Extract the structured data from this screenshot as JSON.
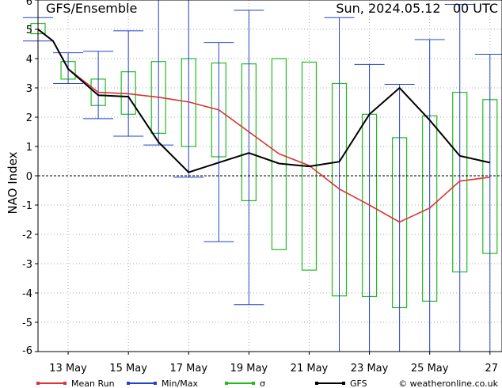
{
  "chart_data": {
    "type": "line",
    "title": "GFS/Ensemble",
    "date_label": "Sun, 2024.05.12   00 UTC",
    "ylabel": "NAO Index",
    "ylim": [
      -6,
      6
    ],
    "xlim": [
      12,
      27.4
    ],
    "yticks": [
      -6,
      -5,
      -4,
      -3,
      -2,
      -1,
      0,
      1,
      2,
      3,
      4,
      5,
      6
    ],
    "xticks": [
      {
        "x": 13,
        "label": "13 May"
      },
      {
        "x": 15,
        "label": "15 May"
      },
      {
        "x": 17,
        "label": "17 May"
      },
      {
        "x": 19,
        "label": "19 May"
      },
      {
        "x": 21,
        "label": "21 May"
      },
      {
        "x": 23,
        "label": "23 May"
      },
      {
        "x": 25,
        "label": "25 May"
      },
      {
        "x": 27,
        "label": "27"
      }
    ],
    "grid": true,
    "legend_position": "bottom",
    "colors": {
      "mean": "#dd3333",
      "minmax": "#2244cc",
      "sigma": "#22bb22",
      "gfs": "#000000",
      "grid": "#aaaaaa"
    },
    "legend": [
      {
        "key": "mean",
        "label": "Mean Run"
      },
      {
        "key": "minmax",
        "label": "Min/Max"
      },
      {
        "key": "sigma",
        "label": "σ"
      },
      {
        "key": "gfs",
        "label": "GFS"
      }
    ],
    "copyright": "© weatheronline.co.uk",
    "days": [
      12,
      12.5,
      13,
      14,
      15,
      16,
      17,
      18,
      19,
      20,
      21,
      22,
      23,
      24,
      25,
      26,
      27
    ],
    "mean_run": [
      5.0,
      4.6,
      3.65,
      2.85,
      2.8,
      2.68,
      2.52,
      2.25,
      1.5,
      0.75,
      0.35,
      -0.45,
      -1.0,
      -1.58,
      -1.1,
      -0.18,
      -0.05
    ],
    "gfs": [
      5.0,
      4.6,
      3.65,
      2.75,
      2.7,
      1.15,
      0.12,
      0.45,
      0.78,
      0.42,
      0.32,
      0.48,
      2.1,
      3.0,
      1.9,
      0.68,
      0.45
    ],
    "minmax": [
      {
        "x": 12,
        "min": 4.6,
        "max": 5.4
      },
      {
        "x": 13,
        "min": 3.15,
        "max": 4.2
      },
      {
        "x": 14,
        "min": 1.95,
        "max": 4.25
      },
      {
        "x": 15,
        "min": 1.35,
        "max": 4.95
      },
      {
        "x": 16,
        "min": 1.05,
        "max": 6.0
      },
      {
        "x": 17,
        "min": -0.05,
        "max": 6.0
      },
      {
        "x": 18,
        "min": -2.25,
        "max": 4.55
      },
      {
        "x": 19,
        "min": -4.4,
        "max": 5.65
      },
      {
        "x": 22,
        "min": -6.0,
        "max": 5.4
      },
      {
        "x": 23,
        "min": -6.0,
        "max": 3.8
      },
      {
        "x": 24,
        "min": -6.0,
        "max": 3.12
      },
      {
        "x": 25,
        "min": -6.0,
        "max": 4.65
      },
      {
        "x": 26,
        "min": -6.0,
        "max": 5.85
      },
      {
        "x": 27,
        "min": -6.0,
        "max": 4.15
      }
    ],
    "sigma": [
      {
        "x": 12,
        "low": 4.85,
        "high": 5.2
      },
      {
        "x": 13,
        "low": 3.3,
        "high": 3.9
      },
      {
        "x": 14,
        "low": 2.4,
        "high": 3.3
      },
      {
        "x": 15,
        "low": 2.1,
        "high": 3.55
      },
      {
        "x": 16,
        "low": 1.45,
        "high": 3.9
      },
      {
        "x": 17,
        "low": 1.0,
        "high": 4.0
      },
      {
        "x": 18,
        "low": 0.65,
        "high": 3.85
      },
      {
        "x": 19,
        "low": -0.85,
        "high": 3.82
      },
      {
        "x": 20,
        "low": -2.52,
        "high": 4.0
      },
      {
        "x": 21,
        "low": -3.22,
        "high": 3.88
      },
      {
        "x": 22,
        "low": -4.1,
        "high": 3.15
      },
      {
        "x": 23,
        "low": -4.12,
        "high": 2.1
      },
      {
        "x": 24,
        "low": -4.5,
        "high": 1.3
      },
      {
        "x": 25,
        "low": -4.28,
        "high": 2.05
      },
      {
        "x": 26,
        "low": -3.28,
        "high": 2.85
      },
      {
        "x": 27,
        "low": -2.65,
        "high": 2.6
      }
    ]
  }
}
